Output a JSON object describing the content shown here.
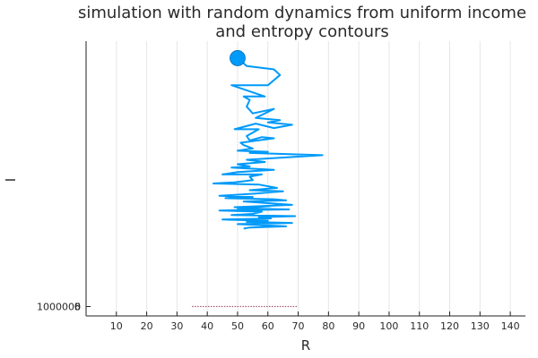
{
  "chart_data": {
    "type": "line",
    "title": [
      "simulation with random dynamics from uniform income",
      "and entropy contours"
    ],
    "xlabel": "R",
    "ylabel": "I",
    "xlim": [
      0,
      145
    ],
    "ylim": [
      -20,
      2350
    ],
    "x_ticks": [
      10,
      20,
      30,
      40,
      50,
      60,
      70,
      80,
      90,
      100,
      110,
      120,
      130,
      140
    ],
    "x_tick_labels": [
      "10",
      "20",
      "30",
      "40",
      "50",
      "60",
      "70",
      "80",
      "90",
      "100",
      "110",
      "120",
      "130",
      "140"
    ],
    "y_ticks": [
      0
    ],
    "y_tick_labels": [
      "0"
    ],
    "y_tick_overlap_labels": [
      "5",
      "6",
      "1000000"
    ],
    "grid": "x-only",
    "legend": "none",
    "series": [
      {
        "color": "#009af9",
        "points": [
          [
            50,
            2200
          ],
          [
            53,
            2130
          ],
          [
            62,
            2100
          ],
          [
            64,
            2050
          ],
          [
            60,
            1960
          ],
          [
            48,
            1960
          ],
          [
            59,
            1860
          ],
          [
            52,
            1860
          ],
          [
            54,
            1830
          ],
          [
            53,
            1770
          ],
          [
            55,
            1710
          ],
          [
            62,
            1750
          ],
          [
            56,
            1670
          ],
          [
            64,
            1650
          ],
          [
            60,
            1630
          ],
          [
            68,
            1610
          ],
          [
            62,
            1580
          ],
          [
            56,
            1620
          ],
          [
            49,
            1570
          ],
          [
            57,
            1570
          ],
          [
            53,
            1510
          ],
          [
            54,
            1470
          ],
          [
            58,
            1500
          ],
          [
            62,
            1490
          ],
          [
            51,
            1450
          ],
          [
            52,
            1430
          ],
          [
            55,
            1400
          ],
          [
            50,
            1380
          ],
          [
            60,
            1370
          ],
          [
            54,
            1360
          ],
          [
            78,
            1340
          ],
          [
            53,
            1300
          ],
          [
            59,
            1280
          ],
          [
            50,
            1260
          ],
          [
            54,
            1240
          ],
          [
            48,
            1230
          ],
          [
            62,
            1210
          ],
          [
            50,
            1190
          ],
          [
            45,
            1170
          ],
          [
            58,
            1170
          ],
          [
            54,
            1150
          ],
          [
            55,
            1120
          ],
          [
            49,
            1100
          ],
          [
            42,
            1090
          ],
          [
            57,
            1080
          ],
          [
            63,
            1050
          ],
          [
            54,
            1030
          ],
          [
            65,
            1020
          ],
          [
            56,
            1000
          ],
          [
            44,
            980
          ],
          [
            55,
            970
          ],
          [
            46,
            960
          ],
          [
            62,
            950
          ],
          [
            66,
            940
          ],
          [
            52,
            930
          ],
          [
            68,
            900
          ],
          [
            49,
            880
          ],
          [
            61,
            890
          ],
          [
            50,
            870
          ],
          [
            67,
            860
          ],
          [
            44,
            850
          ],
          [
            58,
            840
          ],
          [
            55,
            820
          ],
          [
            48,
            810
          ],
          [
            69,
            800
          ],
          [
            57,
            790
          ],
          [
            61,
            780
          ],
          [
            45,
            770
          ],
          [
            60,
            760
          ],
          [
            53,
            750
          ],
          [
            68,
            740
          ],
          [
            50,
            730
          ],
          [
            58,
            720
          ],
          [
            66,
            710
          ],
          [
            54,
            700
          ],
          [
            52,
            690
          ]
        ]
      }
    ],
    "start_marker": {
      "x": 50,
      "y": 2200,
      "color": "#009af9"
    },
    "contour_band": {
      "color": "#8b2252",
      "x_range": [
        35,
        70
      ],
      "y": 0
    }
  }
}
